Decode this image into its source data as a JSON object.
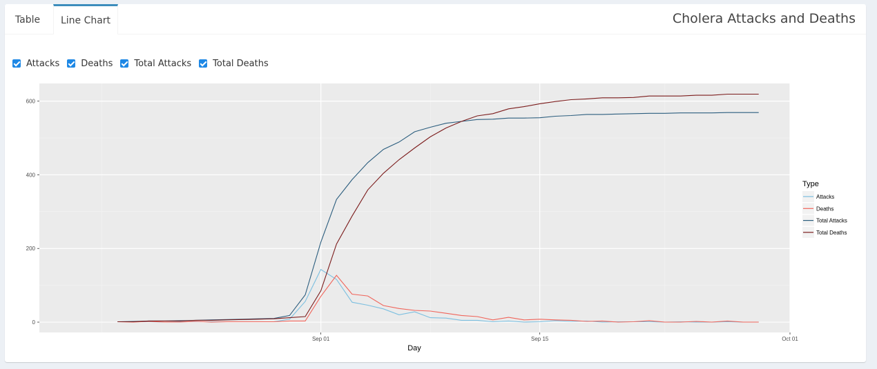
{
  "tabs": [
    {
      "label": "Table",
      "active": false
    },
    {
      "label": "Line Chart",
      "active": true
    }
  ],
  "page_title": "Cholera Attacks and Deaths",
  "checkboxes": [
    {
      "label": "Attacks",
      "checked": true
    },
    {
      "label": "Deaths",
      "checked": true
    },
    {
      "label": "Total Attacks",
      "checked": true
    },
    {
      "label": "Total Deaths",
      "checked": true
    }
  ],
  "colors": {
    "accent": "#3c8dbc",
    "checkbox": "#1e88e5",
    "panel_bg": "#ebebeb"
  },
  "chart_data": {
    "type": "line",
    "xlabel": "Day",
    "ylabel": "",
    "x_ticks": [
      "Sep 01",
      "Sep 15",
      "Oct 01"
    ],
    "y_ticks": [
      0,
      200,
      400,
      600
    ],
    "ylim": [
      -28,
      648
    ],
    "xlim": [
      "1854-08-14",
      "1854-10-01"
    ],
    "grid": true,
    "legend_title": "Type",
    "legend_position": "right",
    "x": [
      "1854-08-19",
      "1854-08-20",
      "1854-08-21",
      "1854-08-22",
      "1854-08-23",
      "1854-08-24",
      "1854-08-25",
      "1854-08-26",
      "1854-08-27",
      "1854-08-28",
      "1854-08-29",
      "1854-08-30",
      "1854-08-31",
      "1854-09-01",
      "1854-09-02",
      "1854-09-03",
      "1854-09-04",
      "1854-09-05",
      "1854-09-06",
      "1854-09-07",
      "1854-09-08",
      "1854-09-09",
      "1854-09-10",
      "1854-09-11",
      "1854-09-12",
      "1854-09-13",
      "1854-09-14",
      "1854-09-15",
      "1854-09-16",
      "1854-09-17",
      "1854-09-18",
      "1854-09-19",
      "1854-09-20",
      "1854-09-21",
      "1854-09-22",
      "1854-09-23",
      "1854-09-24",
      "1854-09-25",
      "1854-09-26",
      "1854-09-27",
      "1854-09-28",
      "1854-09-29"
    ],
    "series": [
      {
        "name": "Attacks",
        "color": "#7bbfe0",
        "values": [
          1,
          1,
          1,
          0,
          1,
          1,
          1,
          1,
          1,
          1,
          1,
          8,
          56,
          143,
          116,
          54,
          46,
          36,
          20,
          28,
          12,
          11,
          5,
          5,
          1,
          3,
          0,
          1,
          4,
          2,
          3,
          0,
          1,
          1,
          1,
          0,
          1,
          0,
          0,
          1,
          0,
          0
        ]
      },
      {
        "name": "Deaths",
        "color": "#f0645a",
        "values": [
          1,
          0,
          2,
          0,
          0,
          2,
          0,
          1,
          1,
          1,
          1,
          3,
          3,
          70,
          127,
          76,
          71,
          45,
          37,
          32,
          30,
          24,
          18,
          15,
          6,
          13,
          6,
          8,
          6,
          5,
          2,
          3,
          0,
          1,
          4,
          0,
          0,
          2,
          0,
          3,
          0,
          0
        ]
      },
      {
        "name": "Total Attacks",
        "color": "#2b5d7e",
        "values": [
          1,
          2,
          3,
          3,
          4,
          5,
          6,
          7,
          8,
          9,
          10,
          18,
          74,
          217,
          333,
          387,
          433,
          469,
          489,
          517,
          529,
          540,
          545,
          550,
          551,
          554,
          554,
          555,
          559,
          561,
          564,
          564,
          565,
          566,
          567,
          567,
          568,
          568,
          568,
          569,
          569,
          569
        ]
      },
      {
        "name": "Total Deaths",
        "color": "#7b1b1b",
        "values": [
          1,
          1,
          3,
          3,
          3,
          5,
          5,
          6,
          7,
          8,
          9,
          12,
          15,
          85,
          212,
          288,
          359,
          404,
          441,
          473,
          503,
          527,
          545,
          560,
          566,
          579,
          585,
          593,
          599,
          604,
          606,
          609,
          609,
          610,
          614,
          614,
          614,
          616,
          616,
          619,
          619,
          619
        ]
      }
    ]
  }
}
